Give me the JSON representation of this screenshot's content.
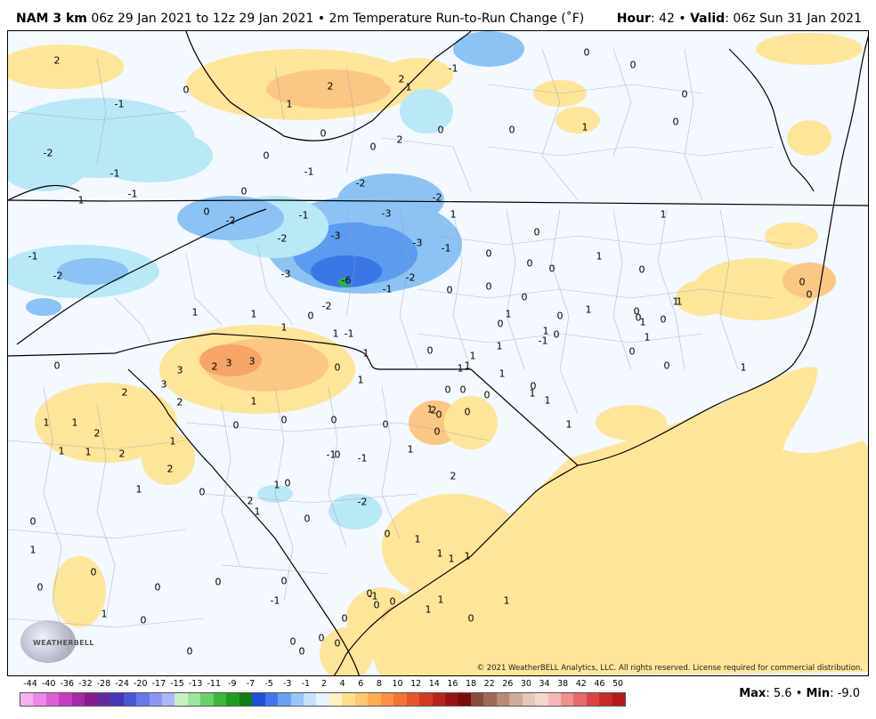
{
  "header": {
    "model": "NAM 3 km",
    "run_info": "06z 29 Jan 2021 to 12z 29 Jan 2021",
    "bullet": "•",
    "field": "2m Temperature Run-to-Run Change (˚F)",
    "hour_label": "Hour",
    "hour_value": ": 42",
    "valid_label": "Valid",
    "valid_value": ": 06z Sun 31 Jan 2021"
  },
  "copyright": "© 2021 WeatherBELL Analytics, LLC. All rights reserved. License required for commercial distribution.",
  "logo_text": "WEATHERBELL",
  "colorbar": {
    "labels": [
      "-44",
      "-40",
      "-36",
      "-32",
      "-28",
      "-24",
      "-20",
      "-17",
      "-15",
      "-13",
      "-11",
      "-9",
      "-7",
      "-5",
      "-3",
      "-1",
      "2",
      "4",
      "6",
      "8",
      "10",
      "12",
      "14",
      "16",
      "18",
      "22",
      "26",
      "30",
      "34",
      "38",
      "42",
      "46",
      "50"
    ],
    "colors": [
      "#f7b0f0",
      "#ee88e6",
      "#df5fd6",
      "#c73cc3",
      "#a629a8",
      "#861b8c",
      "#5e2b9e",
      "#4637b7",
      "#4a56d4",
      "#6579e8",
      "#8b97f0",
      "#b0b7f6",
      "#c8f0c0",
      "#9be69a",
      "#6ad06a",
      "#3db83d",
      "#1e9e1e",
      "#0f7d0f",
      "#1e4fd6",
      "#3f78ec",
      "#6aa0f4",
      "#98c4f8",
      "#c4e2fb",
      "#e8f4fd",
      "#fff1c4",
      "#ffe08a",
      "#ffc86a",
      "#ffad52",
      "#ff9042",
      "#f47434",
      "#e6562a",
      "#d23a22",
      "#b8241c",
      "#981414",
      "#7a0c0c",
      "#8a4a3a",
      "#a06a58",
      "#b88a78",
      "#d0aa98",
      "#e6c8ba",
      "#f4d8d0",
      "#f6b8b8",
      "#f09090",
      "#e86a6a",
      "#dc4444",
      "#c82a2a",
      "#b41818"
    ]
  },
  "max_label": "Max",
  "max_value": ": 5.6",
  "min_label": "Min",
  "min_value": ": -9.0",
  "map": {
    "colors": {
      "water": "#f4f8ff",
      "warm_light": "#fde59a",
      "warm_mid": "#fbc784",
      "warm_dark": "#f6a467",
      "cool_light": "#b9e8f6",
      "cool_mid": "#8cc3f4",
      "cool_dark": "#5b9cf0",
      "cool_deep": "#3a77e6",
      "marker": "#2fb52f"
    },
    "values": [
      {
        "t": "2"
      },
      {
        "t": "0"
      },
      {
        "t": "2"
      },
      {
        "t": "1"
      },
      {
        "t": "2"
      },
      {
        "t": "1"
      },
      {
        "t": "-1"
      },
      {
        "t": "0"
      },
      {
        "t": "0"
      },
      {
        "t": "-1"
      },
      {
        "t": "-2"
      },
      {
        "t": "-1"
      },
      {
        "t": "0"
      },
      {
        "t": "2"
      },
      {
        "t": "0"
      },
      {
        "t": "-1"
      },
      {
        "t": "0"
      },
      {
        "t": "0"
      },
      {
        "t": "1"
      },
      {
        "t": "0"
      },
      {
        "t": "0"
      },
      {
        "t": "0"
      },
      {
        "t": "-1"
      },
      {
        "t": "-1"
      },
      {
        "t": "0"
      },
      {
        "t": "-2"
      },
      {
        "t": "-2"
      },
      {
        "t": "-1"
      },
      {
        "t": "-3"
      },
      {
        "t": "-2"
      },
      {
        "t": "1"
      },
      {
        "t": "0"
      },
      {
        "t": "-3"
      },
      {
        "t": "-3"
      },
      {
        "t": "-1"
      },
      {
        "t": "-2"
      },
      {
        "t": "-3"
      },
      {
        "t": "-6"
      },
      {
        "t": "-2"
      },
      {
        "t": "-1"
      },
      {
        "t": "0"
      },
      {
        "t": "-1"
      },
      {
        "t": "-2"
      },
      {
        "t": "1"
      },
      {
        "t": "1"
      },
      {
        "t": "0"
      },
      {
        "t": "1"
      },
      {
        "t": "1"
      },
      {
        "t": "-1"
      },
      {
        "t": "-2"
      },
      {
        "t": "0"
      },
      {
        "t": "0"
      },
      {
        "t": "0"
      },
      {
        "t": "0"
      },
      {
        "t": "0"
      },
      {
        "t": "0"
      },
      {
        "t": "1"
      },
      {
        "t": "0"
      },
      {
        "t": "0"
      },
      {
        "t": "1"
      },
      {
        "t": "0"
      },
      {
        "t": "3"
      },
      {
        "t": "2"
      },
      {
        "t": "3"
      },
      {
        "t": "3"
      },
      {
        "t": "2"
      },
      {
        "t": "3"
      },
      {
        "t": "2"
      },
      {
        "t": "1"
      },
      {
        "t": "1"
      },
      {
        "t": "2"
      },
      {
        "t": "1"
      },
      {
        "t": "1"
      },
      {
        "t": "2"
      },
      {
        "t": "1"
      },
      {
        "t": "1"
      },
      {
        "t": "2"
      },
      {
        "t": "1"
      },
      {
        "t": "0"
      },
      {
        "t": "0"
      },
      {
        "t": "0"
      },
      {
        "t": "0"
      },
      {
        "t": "-1"
      },
      {
        "t": "-1"
      },
      {
        "t": "0"
      },
      {
        "t": "1"
      },
      {
        "t": "1"
      },
      {
        "t": "2"
      },
      {
        "t": "0"
      },
      {
        "t": "0"
      },
      {
        "t": "1"
      },
      {
        "t": "0"
      },
      {
        "t": "1"
      },
      {
        "t": "2"
      },
      {
        "t": "-2"
      },
      {
        "t": "0"
      },
      {
        "t": "1"
      },
      {
        "t": "0"
      },
      {
        "t": "0"
      },
      {
        "t": "0"
      },
      {
        "t": "1"
      },
      {
        "t": "1"
      },
      {
        "t": "1"
      },
      {
        "t": "1"
      },
      {
        "t": "0"
      },
      {
        "t": "2"
      },
      {
        "t": "1"
      },
      {
        "t": "1"
      },
      {
        "t": "0"
      },
      {
        "t": "0"
      },
      {
        "t": "0"
      },
      {
        "t": "0"
      },
      {
        "t": "1"
      },
      {
        "t": "0"
      },
      {
        "t": "0"
      },
      {
        "t": "1"
      },
      {
        "t": "0"
      },
      {
        "t": "0"
      },
      {
        "t": "0"
      },
      {
        "t": "-1"
      },
      {
        "t": "0"
      },
      {
        "t": "0"
      },
      {
        "t": "0"
      },
      {
        "t": "0"
      },
      {
        "t": "0"
      },
      {
        "t": "-1"
      },
      {
        "t": "0"
      },
      {
        "t": "0"
      },
      {
        "t": "1"
      },
      {
        "t": "1"
      },
      {
        "t": "0"
      },
      {
        "t": "1"
      },
      {
        "t": "0"
      },
      {
        "t": "1"
      },
      {
        "t": "1"
      },
      {
        "t": "1"
      },
      {
        "t": "0"
      },
      {
        "t": "0"
      },
      {
        "t": "0"
      },
      {
        "t": "1"
      },
      {
        "t": "1"
      },
      {
        "t": "1"
      },
      {
        "t": "1"
      },
      {
        "t": "0"
      },
      {
        "t": "0"
      },
      {
        "t": "1"
      },
      {
        "t": "0"
      },
      {
        "t": "-1"
      },
      {
        "t": "1"
      },
      {
        "t": "1"
      },
      {
        "t": "0"
      },
      {
        "t": "0"
      },
      {
        "t": "0"
      },
      {
        "t": "1"
      },
      {
        "t": "0"
      },
      {
        "t": "0"
      },
      {
        "t": "1"
      },
      {
        "t": "1"
      },
      {
        "t": "1"
      },
      {
        "t": "1"
      },
      {
        "t": "0"
      },
      {
        "t": "0"
      },
      {
        "t": "0"
      },
      {
        "t": "1"
      },
      {
        "t": "0"
      },
      {
        "t": "0"
      }
    ]
  }
}
